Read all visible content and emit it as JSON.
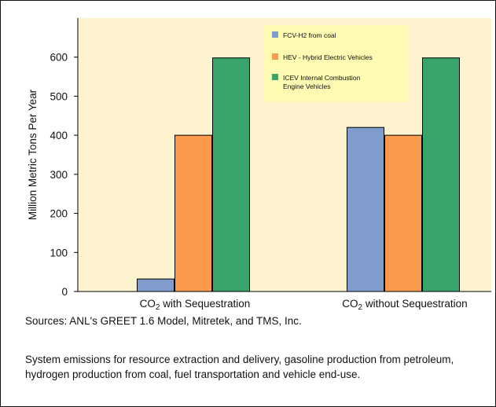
{
  "chart_data": {
    "type": "bar",
    "title": "",
    "xlabel": "",
    "ylabel": "Million Metric Tons Per Year",
    "ylim": [
      0,
      700
    ],
    "yticks": [
      0,
      100,
      200,
      300,
      400,
      500,
      600
    ],
    "grid": false,
    "legend_position": "top-right",
    "categories": [
      {
        "prefix": "CO",
        "subscript": "2",
        "suffix": " with Sequestration"
      },
      {
        "prefix": "CO",
        "subscript": "2",
        "suffix": " without Sequestration"
      }
    ],
    "series": [
      {
        "name": "FCV-H2 from coal",
        "color": "#7f9ccd",
        "values": [
          32,
          420
        ]
      },
      {
        "name": "HEV - Hybrid Electric Vehicles",
        "color": "#fb9a4d",
        "values": [
          400,
          400
        ]
      },
      {
        "name": "ICEV Internal Combustion Engine Vehicles",
        "color": "#3aa46d",
        "values": [
          598,
          598
        ]
      }
    ],
    "colors": {
      "plot_background": "#fdf3cf",
      "legend_background": "#fffbb3"
    }
  },
  "sources": "Sources:  ANL's GREET 1.6 Model, Mitretek, and TMS, Inc.",
  "notes": "System emissions for resource extraction and delivery, gasoline production from petroleum, hydrogen production from coal, fuel transportation and vehicle end-use."
}
